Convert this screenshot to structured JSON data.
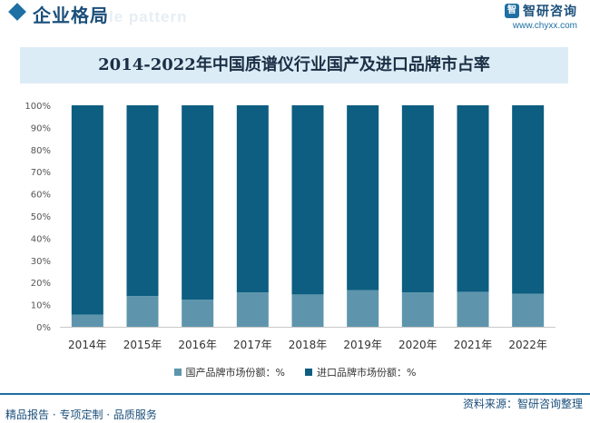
{
  "header": {
    "section_title": "企业格局",
    "watermark_text": "le pattern",
    "logo_mark": "智",
    "logo_name": "智研咨询",
    "logo_url": "www.chyxx.com"
  },
  "colors": {
    "domestic": "#5e95ad",
    "import": "#0d5e80",
    "accent": "#1e6fa3"
  },
  "chart_data": {
    "type": "bar",
    "stacked": true,
    "title": "2014-2022年中国质谱仪行业国产及进口品牌市占率",
    "categories": [
      "2014年",
      "2015年",
      "2016年",
      "2017年",
      "2018年",
      "2019年",
      "2020年",
      "2021年",
      "2022年"
    ],
    "series": [
      {
        "name": "国产品牌市场份额：%",
        "values": [
          5.5,
          13.9,
          12.3,
          15.5,
          14.6,
          16.5,
          15.5,
          15.8,
          14.9
        ]
      },
      {
        "name": "进口品牌市场份额：%",
        "values": [
          94.5,
          86.1,
          87.7,
          84.5,
          85.4,
          83.5,
          84.5,
          84.2,
          85.1
        ]
      }
    ],
    "ylim": [
      0,
      100
    ],
    "yticks": [
      "0%",
      "10%",
      "20%",
      "30%",
      "40%",
      "50%",
      "60%",
      "70%",
      "80%",
      "90%",
      "100%"
    ],
    "legend_position": "bottom",
    "grid": false
  },
  "footer": {
    "source": "资料来源：智研咨询整理",
    "tagline": "精品报告 · 专项定制 · 品质服务"
  }
}
